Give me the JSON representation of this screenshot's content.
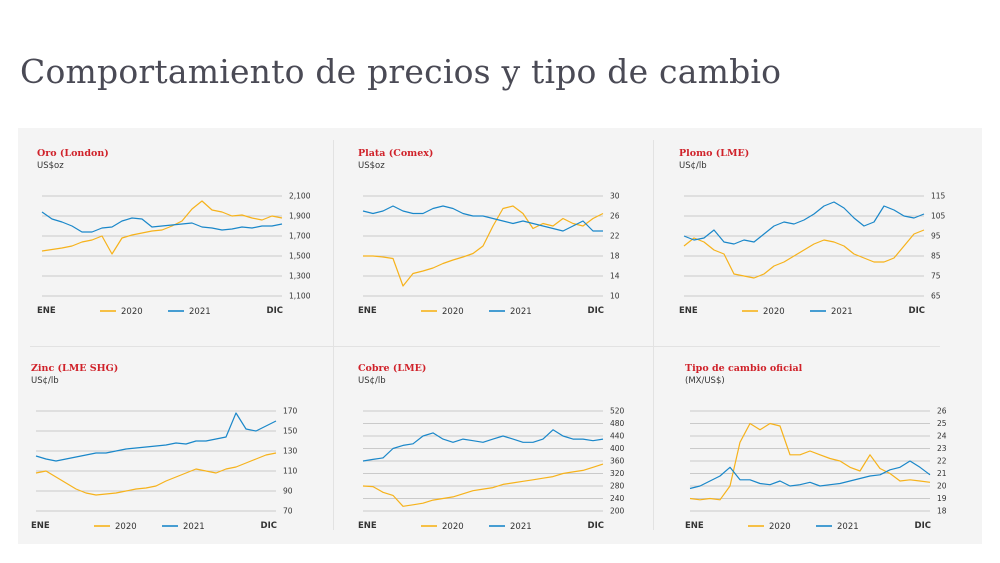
{
  "page": {
    "title": "Comportamiento de precios y tipo de cambio"
  },
  "colors": {
    "series_2020": "#f6b21b",
    "series_2021": "#1a87c9",
    "title_red": "#d0222a",
    "panel_bg": "#f4f4f4"
  },
  "chart_data": [
    {
      "type": "line",
      "title": "Oro (London)",
      "unit": "US$oz",
      "x_start_label": "ENE",
      "x_end_label": "DIC",
      "y_ticks": [
        "2,100",
        "1,900",
        "1,700",
        "1,500",
        "1,300",
        "1,100"
      ],
      "ylim": [
        1100,
        2100
      ],
      "grid": true,
      "legend": "bottom-center",
      "series": [
        {
          "name": "2020",
          "values": [
            1550,
            1565,
            1580,
            1600,
            1640,
            1660,
            1700,
            1520,
            1680,
            1710,
            1730,
            1750,
            1760,
            1800,
            1850,
            1970,
            2050,
            1960,
            1940,
            1900,
            1910,
            1880,
            1860,
            1900,
            1880
          ]
        },
        {
          "name": "2021",
          "values": [
            1940,
            1870,
            1840,
            1800,
            1740,
            1740,
            1780,
            1790,
            1850,
            1880,
            1870,
            1790,
            1800,
            1810,
            1820,
            1830,
            1790,
            1780,
            1760,
            1770,
            1790,
            1780,
            1800,
            1800,
            1820
          ]
        }
      ]
    },
    {
      "type": "line",
      "title": "Plata (Comex)",
      "unit": "US$oz",
      "x_start_label": "ENE",
      "x_end_label": "DIC",
      "y_ticks": [
        "30",
        "26",
        "22",
        "18",
        "14",
        "10"
      ],
      "ylim": [
        10,
        30
      ],
      "grid": true,
      "legend": "bottom-center",
      "series": [
        {
          "name": "2020",
          "values": [
            18.0,
            18.0,
            17.8,
            17.5,
            12.0,
            14.5,
            15.0,
            15.6,
            16.5,
            17.2,
            17.8,
            18.5,
            20.0,
            24.0,
            27.5,
            28.0,
            26.5,
            23.5,
            24.5,
            24.0,
            25.5,
            24.5,
            24.0,
            25.5,
            26.5
          ]
        },
        {
          "name": "2021",
          "values": [
            27.0,
            26.5,
            27.0,
            28.0,
            27.0,
            26.5,
            26.5,
            27.5,
            28.0,
            27.5,
            26.5,
            26.0,
            26.0,
            25.5,
            25.0,
            24.5,
            25.0,
            24.5,
            24.0,
            23.5,
            23.0,
            24.0,
            25.0,
            23.0,
            23.0
          ]
        }
      ]
    },
    {
      "type": "line",
      "title": "Plomo (LME)",
      "unit": "US¢/lb",
      "x_start_label": "ENE",
      "x_end_label": "DIC",
      "y_ticks": [
        "115",
        "105",
        "95",
        "85",
        "75",
        "65"
      ],
      "ylim": [
        65,
        115
      ],
      "grid": true,
      "legend": "bottom-center",
      "series": [
        {
          "name": "2020",
          "values": [
            90,
            94,
            92,
            88,
            86,
            76,
            75,
            74,
            76,
            80,
            82,
            85,
            88,
            91,
            93,
            92,
            90,
            86,
            84,
            82,
            82,
            84,
            90,
            96,
            98
          ]
        },
        {
          "name": "2021",
          "values": [
            95,
            93,
            94,
            98,
            92,
            91,
            93,
            92,
            96,
            100,
            102,
            101,
            103,
            106,
            110,
            112,
            109,
            104,
            100,
            102,
            110,
            108,
            105,
            104,
            106
          ]
        }
      ]
    },
    {
      "type": "line",
      "title": "Zinc (LME SHG)",
      "unit": "US¢/lb",
      "x_start_label": "ENE",
      "x_end_label": "DIC",
      "y_ticks": [
        "170",
        "150",
        "130",
        "110",
        "90",
        "70"
      ],
      "ylim": [
        70,
        170
      ],
      "grid": true,
      "legend": "bottom-center",
      "series": [
        {
          "name": "2020",
          "values": [
            108,
            110,
            104,
            98,
            92,
            88,
            86,
            87,
            88,
            90,
            92,
            93,
            95,
            100,
            104,
            108,
            112,
            110,
            108,
            112,
            114,
            118,
            122,
            126,
            128
          ]
        },
        {
          "name": "2021",
          "values": [
            125,
            122,
            120,
            122,
            124,
            126,
            128,
            128,
            130,
            132,
            133,
            134,
            135,
            136,
            138,
            137,
            140,
            140,
            142,
            144,
            168,
            152,
            150,
            155,
            160
          ]
        }
      ]
    },
    {
      "type": "line",
      "title": "Cobre (LME)",
      "unit": "US¢/lb",
      "x_start_label": "ENE",
      "x_end_label": "DIC",
      "y_ticks": [
        "520",
        "480",
        "440",
        "400",
        "360",
        "320",
        "280",
        "240",
        "200"
      ],
      "ylim": [
        200,
        520
      ],
      "grid": true,
      "legend": "bottom-center",
      "series": [
        {
          "name": "2020",
          "values": [
            280,
            278,
            260,
            250,
            215,
            220,
            225,
            235,
            240,
            245,
            255,
            265,
            270,
            275,
            285,
            290,
            295,
            300,
            305,
            310,
            320,
            325,
            330,
            340,
            350
          ]
        },
        {
          "name": "2021",
          "values": [
            360,
            365,
            370,
            400,
            410,
            415,
            440,
            450,
            430,
            420,
            430,
            425,
            420,
            430,
            440,
            430,
            420,
            420,
            430,
            460,
            440,
            430,
            430,
            425,
            430
          ]
        }
      ]
    },
    {
      "type": "line",
      "title": "Tipo de cambio oficial",
      "unit": "(MX/US$)",
      "x_start_label": "ENE",
      "x_end_label": "DIC",
      "y_ticks": [
        "26",
        "25",
        "24",
        "23",
        "22",
        "21",
        "20",
        "19",
        "18"
      ],
      "ylim": [
        18,
        26
      ],
      "grid": true,
      "legend": "bottom-center",
      "series": [
        {
          "name": "2020",
          "values": [
            19.0,
            18.9,
            19.0,
            18.9,
            20.0,
            23.5,
            25.0,
            24.5,
            25.0,
            24.8,
            22.5,
            22.5,
            22.8,
            22.5,
            22.2,
            22.0,
            21.5,
            21.2,
            22.5,
            21.4,
            21.0,
            20.4,
            20.5,
            20.4,
            20.3
          ]
        },
        {
          "name": "2021",
          "values": [
            19.8,
            20.0,
            20.4,
            20.8,
            21.5,
            20.5,
            20.5,
            20.2,
            20.1,
            20.4,
            20.0,
            20.1,
            20.3,
            20.0,
            20.1,
            20.2,
            20.4,
            20.6,
            20.8,
            20.9,
            21.3,
            21.5,
            22.0,
            21.5,
            20.9
          ]
        }
      ]
    }
  ]
}
